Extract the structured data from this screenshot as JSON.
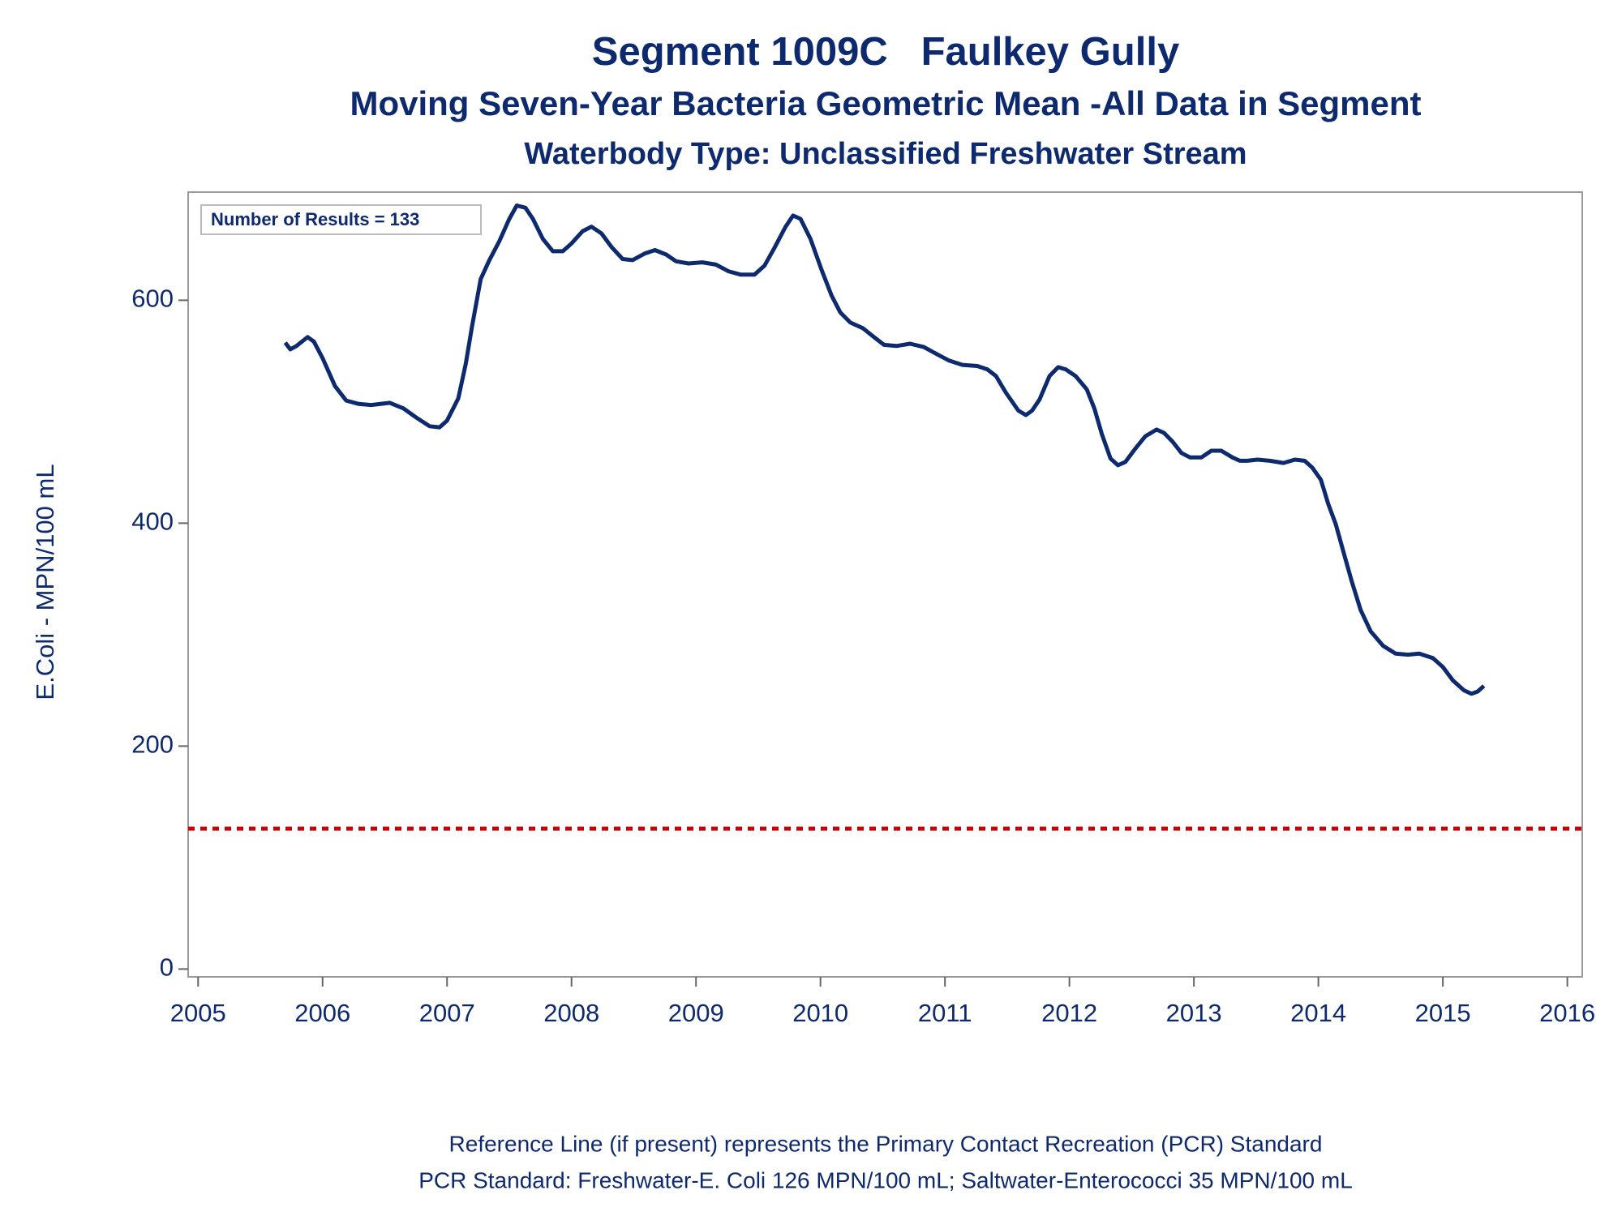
{
  "chart_data": {
    "type": "line",
    "title": "Segment 1009C   Faulkey Gully",
    "subtitle": "Moving Seven-Year Bacteria Geometric Mean -All Data in Segment",
    "subtitle2": "Waterbody Type: Unclassified Freshwater Stream",
    "y_label": "E.Coli - MPN/100 mL",
    "annotation": "Number of Results = 133",
    "footnotes": [
      "Reference Line (if present) represents the Primary Contact Recreation (PCR) Standard",
      "PCR Standard: Freshwater-E. Coli 126 MPN/100 mL; Saltwater-Enterococci 35 MPN/100 mL"
    ],
    "reference_line": {
      "value": 126,
      "color": "#cc0000"
    },
    "xlim": [
      2004.92,
      2016.12
    ],
    "xticks": [
      2005,
      2006,
      2007,
      2008,
      2009,
      2010,
      2011,
      2012,
      2013,
      2014,
      2015,
      2016
    ],
    "ylim": [
      -7,
      697
    ],
    "yticks": [
      0,
      200,
      400,
      600
    ],
    "x": [
      2005.7,
      2005.74,
      2005.79,
      2005.88,
      2005.93,
      2006.0,
      2006.1,
      2006.19,
      2006.29,
      2006.39,
      2006.54,
      2006.65,
      2006.75,
      2006.86,
      2006.94,
      2007.0,
      2007.09,
      2007.15,
      2007.2,
      2007.27,
      2007.34,
      2007.42,
      2007.5,
      2007.56,
      2007.63,
      2007.69,
      2007.77,
      2007.85,
      2007.93,
      2008.0,
      2008.09,
      2008.16,
      2008.24,
      2008.32,
      2008.41,
      2008.49,
      2008.59,
      2008.67,
      2008.76,
      2008.84,
      2008.94,
      2009.05,
      2009.16,
      2009.26,
      2009.36,
      2009.47,
      2009.55,
      2009.63,
      2009.72,
      2009.78,
      2009.84,
      2009.92,
      2010.01,
      2010.09,
      2010.16,
      2010.24,
      2010.34,
      2010.43,
      2010.51,
      2010.61,
      2010.72,
      2010.83,
      2010.93,
      2011.03,
      2011.14,
      2011.26,
      2011.34,
      2011.41,
      2011.49,
      2011.59,
      2011.65,
      2011.7,
      2011.76,
      2011.84,
      2011.91,
      2011.97,
      2012.05,
      2012.14,
      2012.2,
      2012.26,
      2012.33,
      2012.39,
      2012.45,
      2012.53,
      2012.61,
      2012.7,
      2012.76,
      2012.83,
      2012.9,
      2012.97,
      2013.06,
      2013.14,
      2013.22,
      2013.31,
      2013.37,
      2013.43,
      2013.51,
      2013.61,
      2013.72,
      2013.81,
      2013.89,
      2013.95,
      2014.02,
      2014.08,
      2014.14,
      2014.21,
      2014.27,
      2014.34,
      2014.42,
      2014.52,
      2014.62,
      2014.72,
      2014.81,
      2014.92,
      2015.0,
      2015.08,
      2015.17,
      2015.23,
      2015.28,
      2015.33
    ],
    "series": [
      {
        "color": "#0e2a6e",
        "values": [
          562,
          556,
          559,
          567,
          563,
          548,
          523,
          510,
          507,
          506,
          508,
          503,
          495,
          487,
          486,
          492,
          512,
          543,
          576,
          619,
          636,
          653,
          673,
          685,
          683,
          673,
          655,
          644,
          644,
          651,
          662,
          666,
          660,
          648,
          637,
          636,
          642,
          645,
          641,
          635,
          633,
          634,
          632,
          626,
          623,
          623,
          631,
          647,
          666,
          676,
          673,
          655,
          627,
          604,
          589,
          580,
          575,
          567,
          560,
          559,
          561,
          558,
          552,
          546,
          542,
          541,
          538,
          532,
          517,
          501,
          497,
          501,
          511,
          532,
          540,
          538,
          532,
          520,
          503,
          480,
          458,
          452,
          455,
          467,
          478,
          484,
          481,
          473,
          463,
          459,
          459,
          465,
          465,
          459,
          456,
          456,
          457,
          456,
          454,
          457,
          456,
          450,
          439,
          417,
          399,
          371,
          347,
          322,
          303,
          290,
          283,
          282,
          283,
          279,
          271,
          259,
          250,
          247,
          249,
          254
        ]
      }
    ]
  }
}
